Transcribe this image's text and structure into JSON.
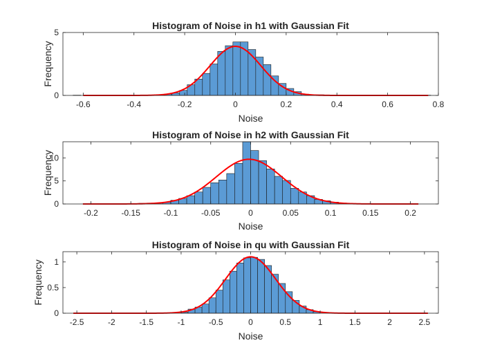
{
  "colors": {
    "bar_fill": "#5B9BD5",
    "bar_edge": "#1a1a1a",
    "fit_line": "#FF0000",
    "axes": "#262626",
    "background": "#FFFFFF"
  },
  "chart_data": [
    {
      "type": "histogram",
      "title": "Histogram of Noise in h1 with Gaussian Fit",
      "xlabel": "Noise",
      "ylabel": "Frequency",
      "xlim": [
        -0.68,
        0.8
      ],
      "ylim": [
        0,
        5
      ],
      "xticks": [
        "-0.6",
        "-0.4",
        "-0.2",
        "0",
        "0.2",
        "0.4",
        "0.6",
        "0.8"
      ],
      "xtick_values": [
        -0.6,
        -0.4,
        -0.2,
        0,
        0.2,
        0.4,
        0.6,
        0.8
      ],
      "yticks": [
        "0",
        "5"
      ],
      "ytick_values": [
        0,
        5
      ],
      "bin_edges": [
        -0.64,
        -0.61,
        -0.58,
        -0.55,
        -0.52,
        -0.49,
        -0.46,
        -0.43,
        -0.4,
        -0.37,
        -0.34,
        -0.31,
        -0.28,
        -0.25,
        -0.22,
        -0.19,
        -0.16,
        -0.13,
        -0.1,
        -0.07,
        -0.04,
        -0.01,
        0.02,
        0.05,
        0.08,
        0.11,
        0.14,
        0.17,
        0.2,
        0.23,
        0.26,
        0.29,
        0.32,
        0.35,
        0.38,
        0.41,
        0.44,
        0.47,
        0.5,
        0.53,
        0.56,
        0.59,
        0.62,
        0.65,
        0.68,
        0.71,
        0.74,
        0.77
      ],
      "bin_values": [
        0.02,
        0,
        0,
        0,
        0,
        0,
        0,
        0,
        0,
        0,
        0.02,
        0.03,
        0.1,
        0.2,
        0.4,
        0.85,
        1.3,
        1.75,
        2.5,
        3.5,
        3.95,
        4.25,
        4.25,
        3.65,
        3.05,
        2.45,
        1.55,
        0.95,
        0.55,
        0.3,
        0.1,
        0.05,
        0.05,
        0.02,
        0,
        0,
        0,
        0,
        0,
        0,
        0,
        0,
        0,
        0,
        0,
        0,
        0.02
      ],
      "fit": {
        "mean": 0,
        "sigma": 0.1,
        "peak": 3.9,
        "x_range": [
          -0.6,
          0.76
        ]
      }
    },
    {
      "type": "histogram",
      "title": "Histogram of Noise in h2 with Gaussian Fit",
      "xlabel": "Noise",
      "ylabel": "Frequency",
      "xlim": [
        -0.235,
        0.235
      ],
      "ylim": [
        0,
        13.5
      ],
      "xticks": [
        "-0.2",
        "-0.15",
        "-0.1",
        "-0.05",
        "0",
        "0.05",
        "0.1",
        "0.15",
        "0.2"
      ],
      "xtick_values": [
        -0.2,
        -0.15,
        -0.1,
        -0.05,
        0,
        0.05,
        0.1,
        0.15,
        0.2
      ],
      "yticks": [
        "0",
        "5",
        "10"
      ],
      "ytick_values": [
        0,
        5,
        10
      ],
      "bin_edges": [
        -0.21,
        -0.2,
        -0.19,
        -0.18,
        -0.17,
        -0.16,
        -0.15,
        -0.14,
        -0.13,
        -0.12,
        -0.11,
        -0.1,
        -0.09,
        -0.08,
        -0.07,
        -0.06,
        -0.05,
        -0.04,
        -0.03,
        -0.02,
        -0.01,
        0,
        0.01,
        0.02,
        0.03,
        0.04,
        0.05,
        0.06,
        0.07,
        0.08,
        0.09,
        0.1,
        0.11,
        0.12,
        0.13,
        0.14,
        0.15,
        0.16,
        0.17,
        0.18,
        0.19,
        0.2,
        0.21
      ],
      "bin_values": [
        0,
        0,
        0,
        0,
        0,
        0.1,
        0.1,
        0.15,
        0.2,
        0.25,
        0.4,
        0.8,
        1.2,
        1.8,
        2.6,
        3.6,
        4.6,
        5.2,
        6.6,
        8.8,
        13.6,
        11.6,
        9.4,
        7.6,
        6.0,
        5.1,
        3.4,
        2.6,
        1.8,
        1.0,
        0.7,
        0.4,
        0.2,
        0.1,
        0.1,
        0.05,
        0,
        0,
        0,
        0,
        0,
        0
      ],
      "fit": {
        "mean": -0.002,
        "sigma": 0.041,
        "peak": 9.7,
        "x_range": [
          -0.21,
          0.21
        ]
      }
    },
    {
      "type": "histogram",
      "title": "Histogram of Noise in qu with Gaussian Fit",
      "xlabel": "Noise",
      "ylabel": "Frequency",
      "xlim": [
        -2.7,
        2.7
      ],
      "ylim": [
        0,
        1.2
      ],
      "xticks": [
        "-2.5",
        "-2",
        "-1.5",
        "-1",
        "-0.5",
        "0",
        "0.5",
        "1",
        "1.5",
        "2",
        "2.5"
      ],
      "xtick_values": [
        -2.5,
        -2,
        -1.5,
        -1,
        -0.5,
        0,
        0.5,
        1,
        1.5,
        2,
        2.5
      ],
      "yticks": [
        "0",
        "0.5",
        "1"
      ],
      "ytick_values": [
        0,
        0.5,
        1
      ],
      "bin_edges": [
        -1.0,
        -0.9,
        -0.8,
        -0.7,
        -0.6,
        -0.5,
        -0.4,
        -0.3,
        -0.2,
        -0.1,
        0,
        0.1,
        0.2,
        0.3,
        0.4,
        0.5,
        0.6,
        0.7,
        0.8,
        0.9,
        1.0
      ],
      "bin_values": [
        0.02,
        0.08,
        0.12,
        0.18,
        0.3,
        0.45,
        0.65,
        0.82,
        0.98,
        1.08,
        1.09,
        1.05,
        0.93,
        0.76,
        0.58,
        0.42,
        0.25,
        0.14,
        0.07,
        0.03
      ],
      "fit": {
        "mean": 0,
        "sigma": 0.36,
        "peak": 1.1,
        "x_range": [
          -2.55,
          2.55
        ]
      }
    }
  ]
}
